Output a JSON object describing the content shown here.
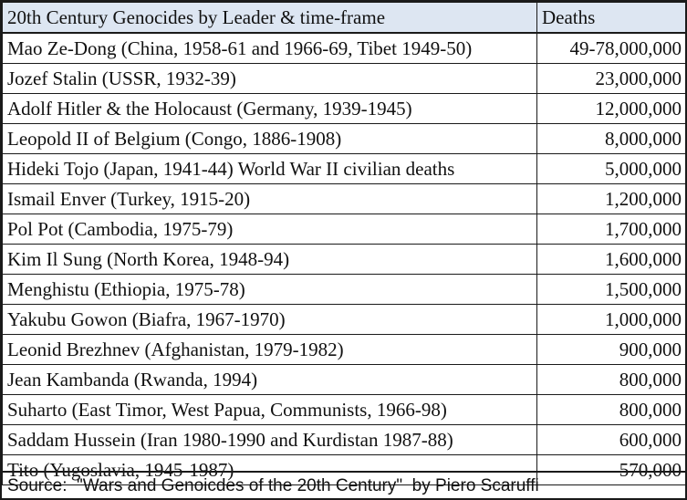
{
  "table": {
    "columns": [
      "20th Century Genocides by Leader & time-frame",
      "Deaths"
    ],
    "header_color": "#dde6f2",
    "rows": [
      {
        "leader": "Mao Ze-Dong (China, 1958-61 and 1966-69, Tibet 1949-50)",
        "deaths": "49-78,000,000"
      },
      {
        "leader": "Jozef Stalin (USSR, 1932-39)",
        "deaths": "23,000,000"
      },
      {
        "leader": "Adolf Hitler & the Holocaust (Germany, 1939-1945)",
        "deaths": "12,000,000"
      },
      {
        "leader": "Leopold II of Belgium (Congo, 1886-1908)",
        "deaths": "8,000,000"
      },
      {
        "leader": "Hideki Tojo (Japan, 1941-44) World War II civilian deaths",
        "deaths": "5,000,000"
      },
      {
        "leader": "Ismail Enver (Turkey, 1915-20)",
        "deaths": "1,200,000"
      },
      {
        "leader": "Pol Pot (Cambodia, 1975-79)",
        "deaths": "1,700,000"
      },
      {
        "leader": "Kim Il Sung (North Korea, 1948-94)",
        "deaths": "1,600,000"
      },
      {
        "leader": "Menghistu (Ethiopia, 1975-78)",
        "deaths": "1,500,000"
      },
      {
        "leader": "Yakubu Gowon (Biafra, 1967-1970)",
        "deaths": "1,000,000"
      },
      {
        "leader": "Leonid Brezhnev (Afghanistan, 1979-1982)",
        "deaths": "900,000"
      },
      {
        "leader": "Jean Kambanda (Rwanda, 1994)",
        "deaths": "800,000"
      },
      {
        "leader": "Suharto (East Timor, West Papua, Communists, 1966-98)",
        "deaths": "800,000"
      },
      {
        "leader": "Saddam Hussein (Iran 1980-1990 and Kurdistan 1987-88)",
        "deaths": "600,000"
      },
      {
        "leader": "Tito (Yugoslavia, 1945-1987)",
        "deaths": "570,000"
      }
    ]
  },
  "source": "Source:  \"Wars and Genoicdes of the 20th Century\"  by Piero Scaruffi"
}
